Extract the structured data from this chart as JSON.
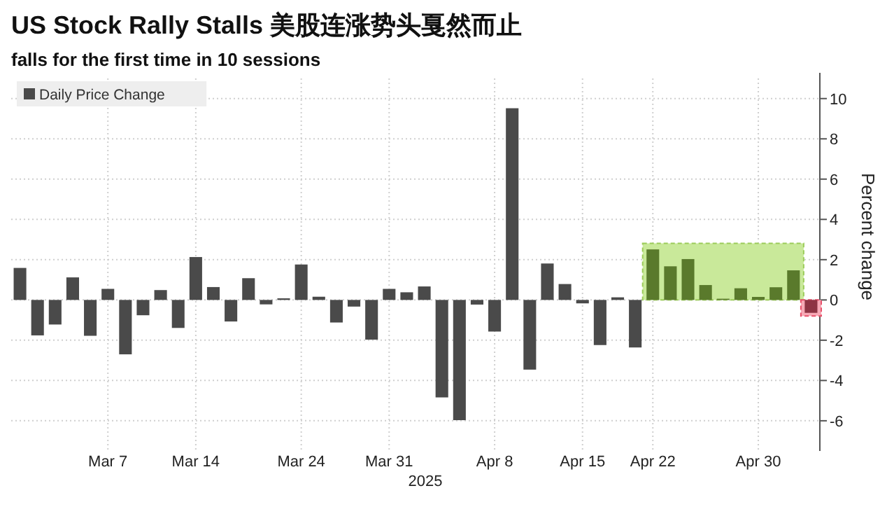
{
  "chart_data": {
    "type": "bar",
    "title": "US Stock Rally Stalls 美股连涨势头戛然而止",
    "subtitle": "falls for the first time in 10 sessions",
    "ylabel": "Percent change",
    "annotations": [
      "2025"
    ],
    "categories": [
      null,
      null,
      null,
      null,
      null,
      "Mar 7",
      null,
      null,
      null,
      null,
      "Mar 14",
      null,
      null,
      null,
      null,
      null,
      "Mar 24",
      null,
      null,
      null,
      null,
      "Mar 31",
      null,
      null,
      null,
      null,
      null,
      "Apr 8",
      null,
      null,
      null,
      null,
      "Apr 15",
      null,
      null,
      null,
      "Apr 22",
      null,
      null,
      null,
      null,
      null,
      "Apr 30",
      null,
      null,
      null
    ],
    "series": [
      {
        "name": "Daily Price Change",
        "color": "#4a4a4a",
        "values": [
          1.59,
          -1.76,
          -1.22,
          1.12,
          -1.78,
          0.55,
          -2.7,
          -0.76,
          0.49,
          -1.39,
          2.13,
          0.64,
          -1.07,
          1.08,
          -0.22,
          0.08,
          1.76,
          0.16,
          -1.12,
          -0.33,
          -1.97,
          0.55,
          0.38,
          0.67,
          -4.84,
          -5.97,
          -0.23,
          -1.57,
          9.52,
          -3.46,
          1.81,
          0.79,
          -0.17,
          -2.24,
          0.13,
          -2.36,
          2.51,
          1.67,
          2.03,
          0.74,
          0.06,
          0.58,
          0.15,
          0.63,
          1.47,
          -0.64
        ],
        "colors": [
          "#4a4a4a",
          "#4a4a4a",
          "#4a4a4a",
          "#4a4a4a",
          "#4a4a4a",
          "#4a4a4a",
          "#4a4a4a",
          "#4a4a4a",
          "#4a4a4a",
          "#4a4a4a",
          "#4a4a4a",
          "#4a4a4a",
          "#4a4a4a",
          "#4a4a4a",
          "#4a4a4a",
          "#4a4a4a",
          "#4a4a4a",
          "#4a4a4a",
          "#4a4a4a",
          "#4a4a4a",
          "#4a4a4a",
          "#4a4a4a",
          "#4a4a4a",
          "#4a4a4a",
          "#4a4a4a",
          "#4a4a4a",
          "#4a4a4a",
          "#4a4a4a",
          "#4a4a4a",
          "#4a4a4a",
          "#4a4a4a",
          "#4a4a4a",
          "#4a4a4a",
          "#4a4a4a",
          "#4a4a4a",
          "#4a4a4a",
          "#5a7a2c",
          "#5a7a2c",
          "#5a7a2c",
          "#5a7a2c",
          "#5a7a2c",
          "#5a7a2c",
          "#5a7a2c",
          "#5a7a2c",
          "#5a7a2c",
          "#8e3444"
        ]
      }
    ],
    "ylim": [
      -7.5,
      11
    ],
    "yticks": [
      -6,
      -4,
      -2,
      0,
      2,
      4,
      6,
      8,
      10
    ],
    "grid": true,
    "legend": "top left"
  }
}
